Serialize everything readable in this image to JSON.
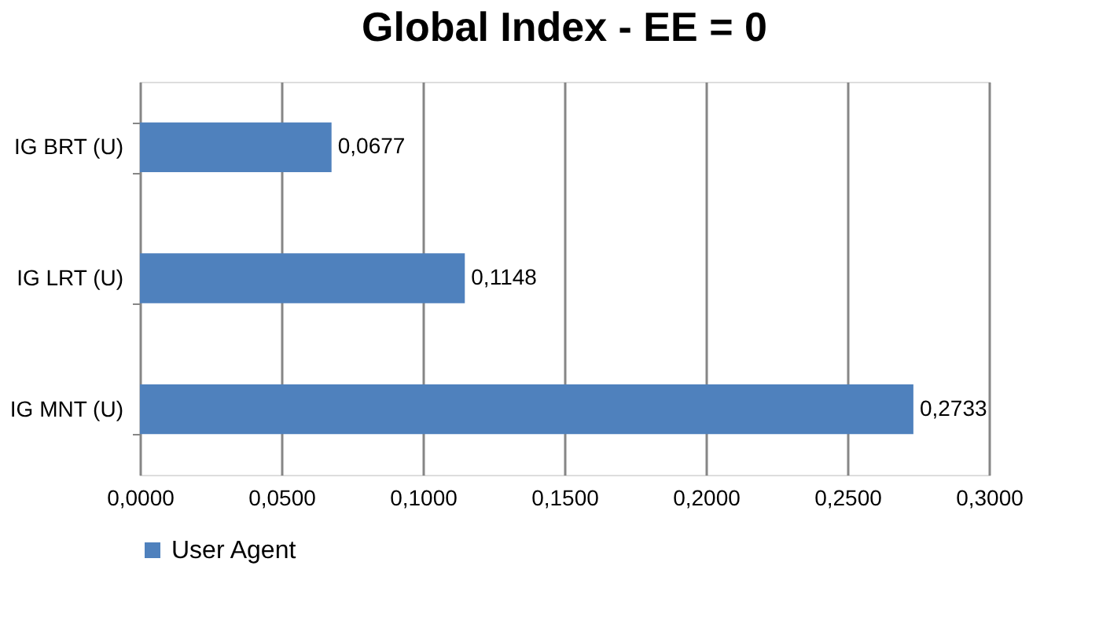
{
  "chart_data": {
    "type": "bar",
    "orientation": "horizontal",
    "title": "Global Index - EE = 0",
    "categories": [
      "IG BRT (U)",
      "IG LRT (U)",
      "IG MNT (U)"
    ],
    "series": [
      {
        "name": "User Agent",
        "color": "#4f81bd",
        "values": [
          0.0677,
          0.1148,
          0.2733
        ],
        "value_labels": [
          "0,0677",
          "0,1148",
          "0,2733"
        ]
      }
    ],
    "xlim": [
      0,
      0.3
    ],
    "xticks": [
      {
        "value": 0,
        "label": "0,0000"
      },
      {
        "value": 0.05,
        "label": "0,0500"
      },
      {
        "value": 0.1,
        "label": "0,1000"
      },
      {
        "value": 0.15,
        "label": "0,1500"
      },
      {
        "value": 0.2,
        "label": "0,2000"
      },
      {
        "value": 0.25,
        "label": "0,2500"
      },
      {
        "value": 0.3,
        "label": "0,3000"
      }
    ],
    "grid": "x",
    "legend": "bottom"
  }
}
